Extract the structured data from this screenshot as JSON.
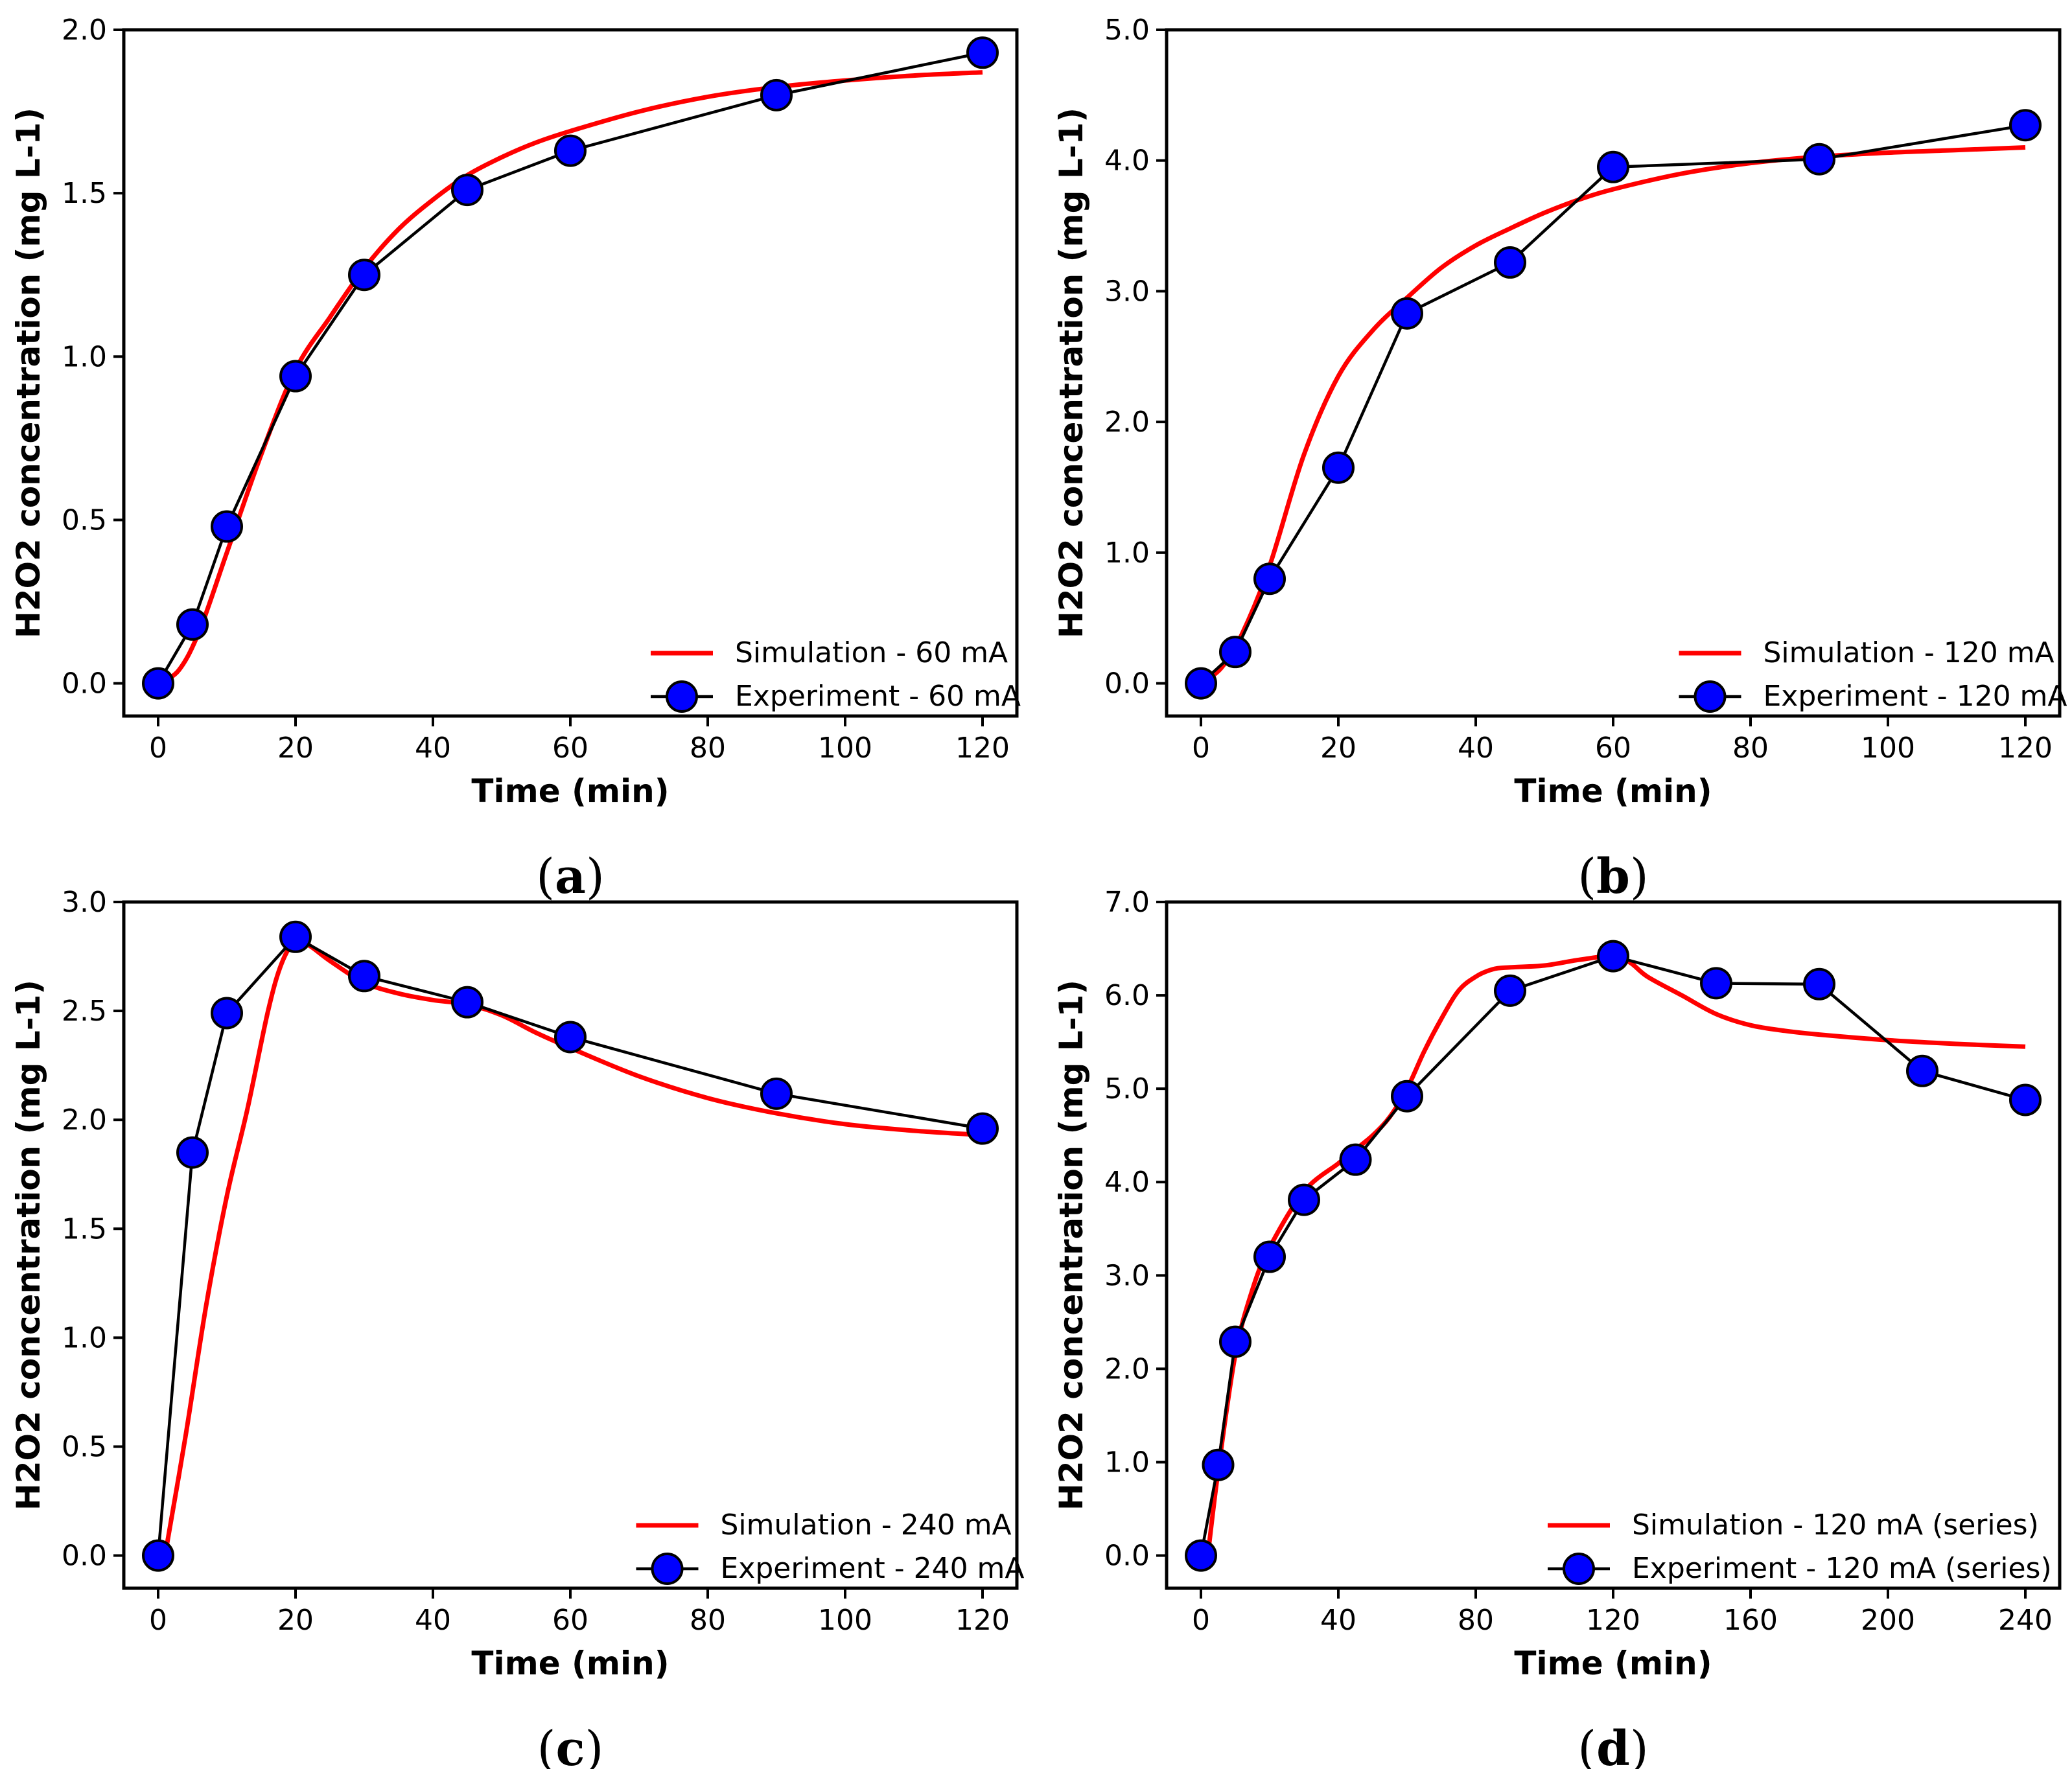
{
  "chart_data": [
    {
      "type": "line",
      "panel_label": "a",
      "xlabel": "Time (min)",
      "ylabel": "H2O2 concentration (mg L-1)",
      "xlim": [
        -5,
        125
      ],
      "ylim": [
        -0.1,
        2.0
      ],
      "xticks": [
        0,
        20,
        40,
        60,
        80,
        100,
        120
      ],
      "yticks": [
        0.0,
        0.5,
        1.0,
        1.5,
        2.0
      ],
      "ytick_labels": [
        "0.0",
        "0.5",
        "1.0",
        "1.5",
        "2.0"
      ],
      "grid": false,
      "legend_position": "lower-right",
      "series": [
        {
          "name": "Simulation - 60 mA",
          "kind": "curve",
          "color": "#ff0000",
          "x": [
            0,
            3,
            6,
            10,
            15,
            20,
            25,
            30,
            35,
            40,
            45,
            50,
            55,
            60,
            70,
            80,
            90,
            100,
            110,
            120
          ],
          "y": [
            0.0,
            0.04,
            0.16,
            0.4,
            0.7,
            0.96,
            1.12,
            1.27,
            1.39,
            1.48,
            1.555,
            1.61,
            1.655,
            1.69,
            1.75,
            1.795,
            1.825,
            1.845,
            1.86,
            1.87
          ]
        },
        {
          "name": "Experiment - 60 mA",
          "kind": "markers",
          "color": "#0000ff",
          "x": [
            0,
            5,
            10,
            20,
            30,
            45,
            60,
            90,
            120
          ],
          "y": [
            0.0,
            0.18,
            0.48,
            0.94,
            1.25,
            1.51,
            1.63,
            1.8,
            1.93
          ]
        }
      ]
    },
    {
      "type": "line",
      "panel_label": "b",
      "xlabel": "Time (min)",
      "ylabel": "H2O2 concentration (mg L-1)",
      "xlim": [
        -5,
        125
      ],
      "ylim": [
        -0.25,
        5.0
      ],
      "xticks": [
        0,
        20,
        40,
        60,
        80,
        100,
        120
      ],
      "yticks": [
        0.0,
        1.0,
        2.0,
        3.0,
        4.0,
        5.0
      ],
      "ytick_labels": [
        "0.0",
        "1.0",
        "2.0",
        "3.0",
        "4.0",
        "5.0"
      ],
      "grid": false,
      "legend_position": "lower-right",
      "series": [
        {
          "name": "Simulation - 120 mA",
          "kind": "curve",
          "color": "#ff0000",
          "x": [
            0,
            3,
            6,
            10,
            15,
            20,
            25,
            30,
            35,
            40,
            45,
            50,
            55,
            60,
            70,
            80,
            90,
            100,
            110,
            120
          ],
          "y": [
            0.0,
            0.12,
            0.38,
            0.9,
            1.75,
            2.35,
            2.7,
            2.95,
            3.18,
            3.35,
            3.48,
            3.6,
            3.7,
            3.78,
            3.9,
            3.98,
            4.03,
            4.06,
            4.08,
            4.1
          ]
        },
        {
          "name": "Experiment - 120 mA",
          "kind": "markers",
          "color": "#0000ff",
          "x": [
            0,
            5,
            10,
            20,
            30,
            45,
            60,
            90,
            120
          ],
          "y": [
            0.0,
            0.24,
            0.8,
            1.65,
            2.83,
            3.22,
            3.95,
            4.01,
            4.27
          ]
        }
      ]
    },
    {
      "type": "line",
      "panel_label": "c",
      "xlabel": "Time (min)",
      "ylabel": "H2O2 concentration (mg L-1)",
      "xlim": [
        -5,
        125
      ],
      "ylim": [
        -0.15,
        3.0
      ],
      "xticks": [
        0,
        20,
        40,
        60,
        80,
        100,
        120
      ],
      "yticks": [
        0.0,
        0.5,
        1.0,
        1.5,
        2.0,
        2.5,
        3.0
      ],
      "ytick_labels": [
        "0.0",
        "0.5",
        "1.0",
        "1.5",
        "2.0",
        "2.5",
        "3.0"
      ],
      "grid": false,
      "legend_position": "lower-right",
      "series": [
        {
          "name": "Simulation - 240 mA",
          "kind": "curve",
          "color": "#ff0000",
          "x": [
            1,
            4,
            7,
            10,
            13,
            16,
            18,
            20,
            22,
            25,
            30,
            35,
            40,
            45,
            50,
            55,
            60,
            70,
            80,
            90,
            100,
            110,
            120
          ],
          "y": [
            0.0,
            0.55,
            1.15,
            1.65,
            2.05,
            2.5,
            2.72,
            2.82,
            2.8,
            2.73,
            2.63,
            2.58,
            2.55,
            2.53,
            2.48,
            2.4,
            2.33,
            2.2,
            2.1,
            2.03,
            1.98,
            1.95,
            1.93
          ]
        },
        {
          "name": "Experiment - 240 mA",
          "kind": "markers",
          "color": "#0000ff",
          "x": [
            0,
            5,
            10,
            20,
            30,
            45,
            60,
            90,
            120
          ],
          "y": [
            0.0,
            1.85,
            2.49,
            2.84,
            2.66,
            2.54,
            2.38,
            2.12,
            1.96
          ]
        }
      ]
    },
    {
      "type": "line",
      "panel_label": "d",
      "xlabel": "Time (min)",
      "ylabel": "H2O2 concentration (mg L-1)",
      "xlim": [
        -10,
        250
      ],
      "ylim": [
        -0.35,
        7.0
      ],
      "xticks": [
        0,
        40,
        80,
        120,
        160,
        200,
        240
      ],
      "yticks": [
        0.0,
        1.0,
        2.0,
        3.0,
        4.0,
        5.0,
        6.0,
        7.0
      ],
      "ytick_labels": [
        "0.0",
        "1.0",
        "2.0",
        "3.0",
        "4.0",
        "5.0",
        "6.0",
        "7.0"
      ],
      "grid": false,
      "legend_position": "lower-right",
      "series": [
        {
          "name": "Simulation - 120 mA (series)",
          "kind": "curve",
          "color": "#ff0000",
          "x": [
            2,
            5,
            10,
            15,
            20,
            30,
            40,
            45,
            50,
            55,
            60,
            65,
            70,
            75,
            80,
            85,
            90,
            100,
            110,
            120,
            125,
            130,
            140,
            150,
            160,
            170,
            180,
            200,
            220,
            240
          ],
          "y": [
            0.0,
            0.9,
            2.15,
            2.85,
            3.3,
            3.9,
            4.2,
            4.35,
            4.5,
            4.7,
            5.0,
            5.4,
            5.75,
            6.05,
            6.2,
            6.28,
            6.3,
            6.32,
            6.38,
            6.42,
            6.35,
            6.2,
            6.0,
            5.8,
            5.68,
            5.62,
            5.58,
            5.52,
            5.48,
            5.45
          ]
        },
        {
          "name": "Experiment - 120 mA (series)",
          "kind": "markers",
          "color": "#0000ff",
          "x": [
            0,
            5,
            10,
            20,
            30,
            45,
            60,
            90,
            120,
            150,
            180,
            210,
            240
          ],
          "y": [
            0.0,
            0.97,
            2.29,
            3.2,
            3.81,
            4.24,
            4.92,
            6.05,
            6.42,
            6.13,
            6.12,
            5.19,
            4.88
          ]
        }
      ]
    }
  ]
}
